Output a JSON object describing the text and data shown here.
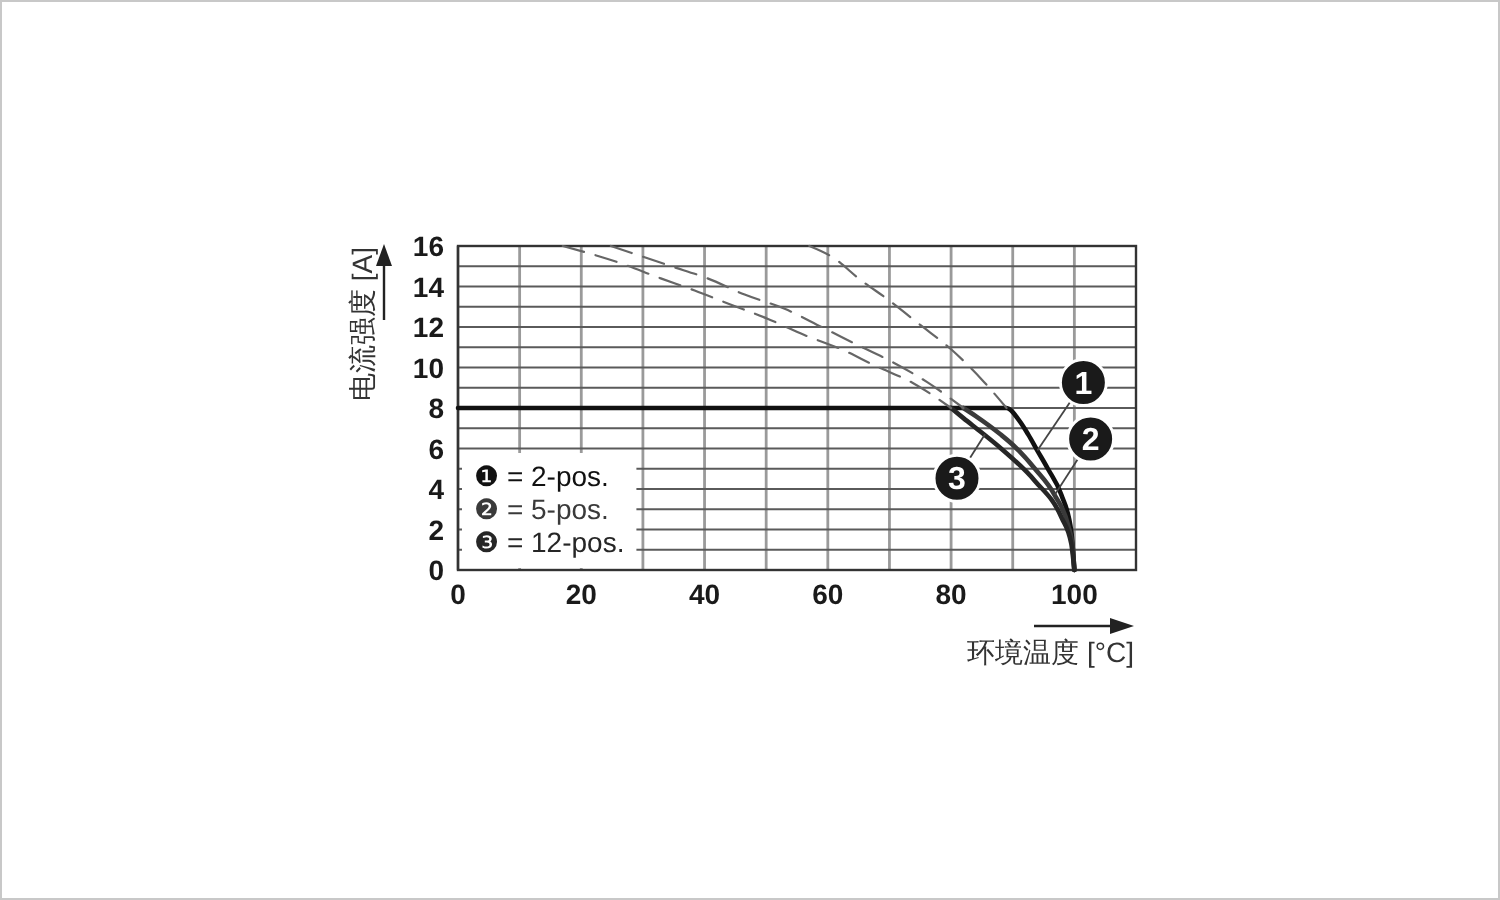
{
  "chart_data": {
    "type": "line",
    "xlabel": "环境温度 [°C]",
    "ylabel": "电流强度 [A]",
    "xlim": [
      0,
      110
    ],
    "ylim": [
      0,
      16
    ],
    "xticks": [
      0,
      {
        "value": 10,
        "label": null
      },
      20,
      {
        "value": 30,
        "label": null
      },
      40,
      {
        "value": 50,
        "label": null
      },
      60,
      {
        "value": 70,
        "label": null
      },
      80,
      {
        "value": 90,
        "label": null
      },
      100
    ],
    "yticks": [
      0,
      {
        "value": 1,
        "label": null
      },
      2,
      {
        "value": 3,
        "label": null
      },
      4,
      {
        "value": 5,
        "label": null
      },
      6,
      {
        "value": 7,
        "label": null
      },
      8,
      {
        "value": 9,
        "label": null
      },
      10,
      {
        "value": 11,
        "label": null
      },
      12,
      {
        "value": 13,
        "label": null
      },
      14,
      {
        "value": 15,
        "label": null
      },
      16
    ],
    "grid": true,
    "legend": "bottom left",
    "series": [
      {
        "name": "❶ = 2-pos.",
        "color": "#111111",
        "x": [
          0,
          89,
          91,
          92.5,
          94,
          95.7,
          97.9,
          99.5,
          100
        ],
        "values": [
          8,
          8,
          7.4,
          6.7,
          5.9,
          5,
          3.7,
          1.9,
          0
        ]
      },
      {
        "name": "❷ = 5-pos.",
        "color": "#3a3a3a",
        "x": [
          82,
          84,
          88,
          90.3,
          93.6,
          96.8,
          99,
          99.7,
          100
        ],
        "values": [
          8,
          7.6,
          6.7,
          6.1,
          5,
          3.7,
          2.2,
          1.2,
          0
        ]
      },
      {
        "name": "❸ = 12-pos.",
        "color": "#262626",
        "x": [
          80,
          82,
          84.9,
          88.1,
          93.6,
          97.9,
          99.5,
          100
        ],
        "values": [
          8,
          7.5,
          6.8,
          6,
          4.4,
          2.6,
          1.3,
          0
        ]
      },
      {
        "color": "#666666",
        "line_style": "dashed",
        "x": [
          57,
          61,
          65,
          70,
          75,
          80,
          85,
          89
        ],
        "values": [
          16,
          15.4,
          14.4,
          13.3,
          12.1,
          10.9,
          9.4,
          8
        ]
      },
      {
        "color": "#666666",
        "line_style": "dashed",
        "x": [
          24.8,
          34.6,
          40.5,
          46.5,
          53,
          59,
          64.9,
          70.3,
          76,
          82
        ],
        "values": [
          16,
          15,
          14.4,
          13.6,
          12.9,
          12,
          11.1,
          10.3,
          9.3,
          8
        ]
      },
      {
        "color": "#666666",
        "line_style": "dashed",
        "x": [
          17,
          25.9,
          32.9,
          38.4,
          44.3,
          50.3,
          56.2,
          62.2,
          67.6,
          74,
          80
        ],
        "values": [
          16,
          15.2,
          14.4,
          13.8,
          13.1,
          12.4,
          11.6,
          10.9,
          10.1,
          9.2,
          8
        ]
      }
    ],
    "annotations": [
      {
        "text": "1",
        "x": 94,
        "y": 5.9
      },
      {
        "text": "2",
        "x": 96.8,
        "y": 3.7
      },
      {
        "text": "3",
        "x": 85.5,
        "y": 6.7
      }
    ]
  }
}
